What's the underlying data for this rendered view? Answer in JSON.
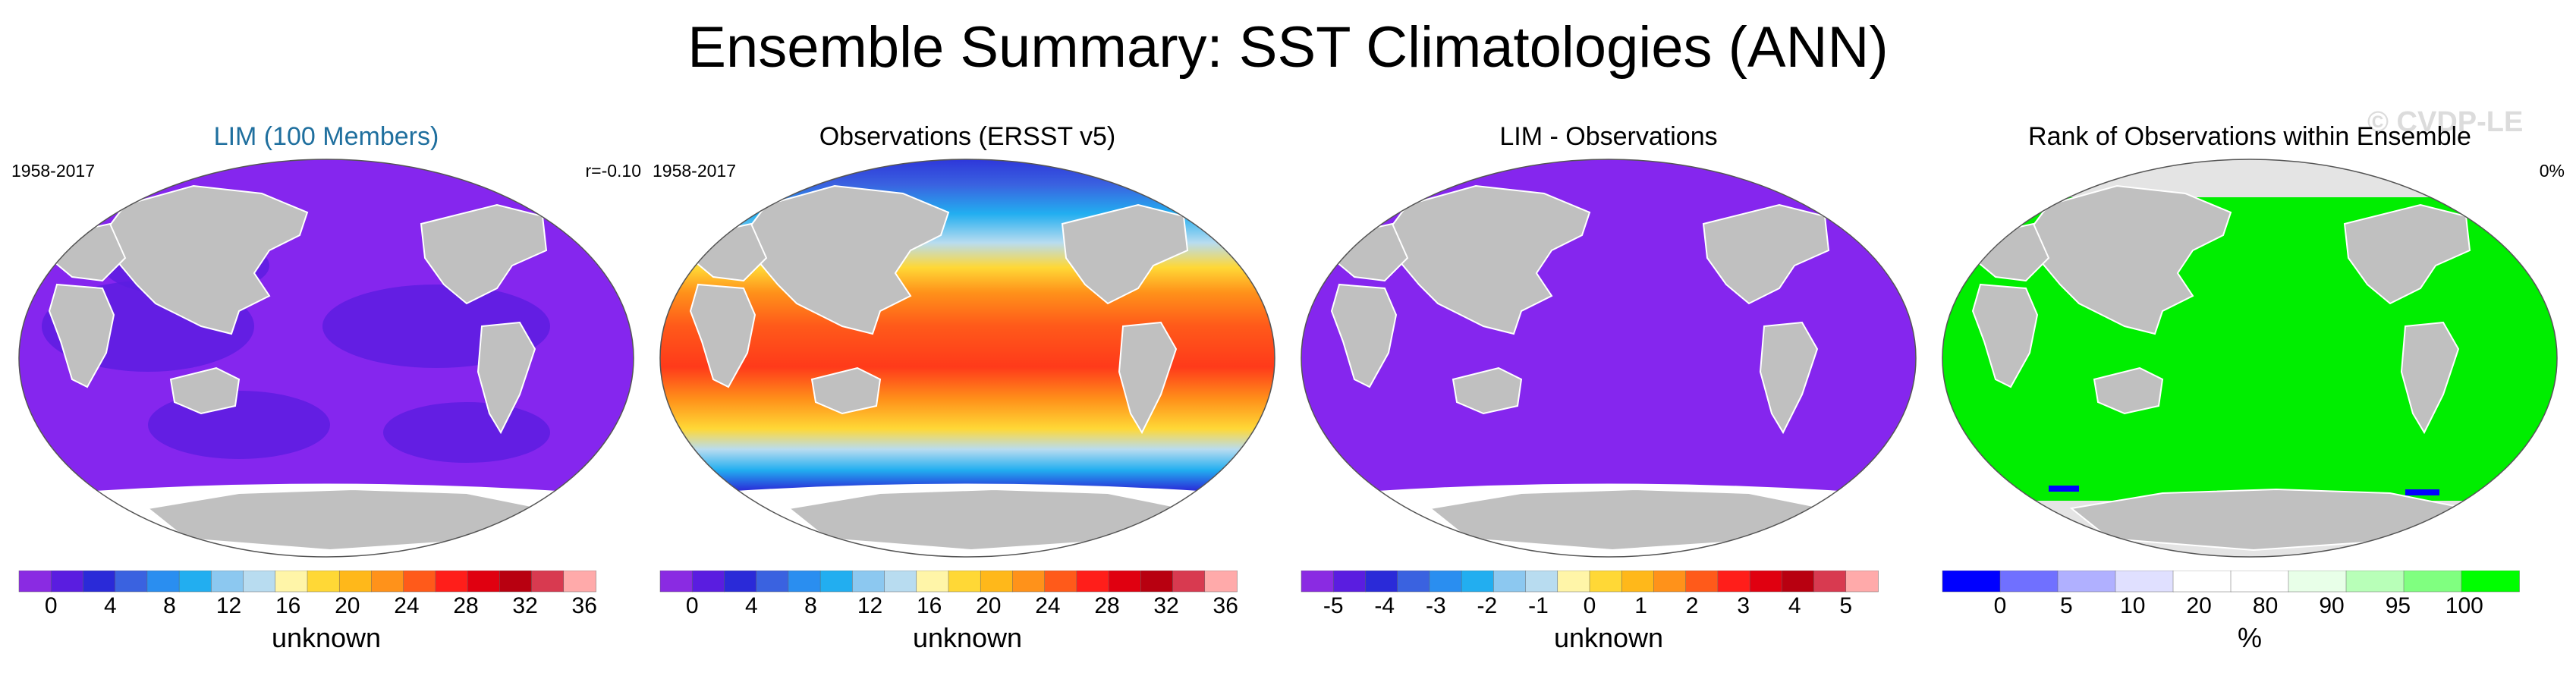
{
  "title": "Ensemble Summary: SST Climatologies (ANN)",
  "watermark": "© CVDP-LE",
  "panels": [
    {
      "title": "LIM (100 Members)",
      "title_color": "#1f6f9e",
      "left_text": "1958-2017",
      "right_text": "r=-0.10",
      "map_fill": "purple",
      "colorbar": {
        "ticks": [
          "0",
          "4",
          "8",
          "12",
          "16",
          "20",
          "24",
          "28",
          "32",
          "36"
        ],
        "label": "unknown"
      }
    },
    {
      "title": "Observations (ERSST v5)",
      "title_color": "#000000",
      "left_text": "1958-2017",
      "right_text": "",
      "map_fill": "sst-gradient",
      "colorbar": {
        "ticks": [
          "0",
          "4",
          "8",
          "12",
          "16",
          "20",
          "24",
          "28",
          "32",
          "36"
        ],
        "label": "unknown"
      }
    },
    {
      "title": "LIM - Observations",
      "title_color": "#000000",
      "left_text": "",
      "right_text": "",
      "map_fill": "purple",
      "colorbar": {
        "ticks": [
          "-5",
          "-4",
          "-3",
          "-2",
          "-1",
          "0",
          "1",
          "2",
          "3",
          "4",
          "5"
        ],
        "label": "unknown"
      }
    },
    {
      "title": "Rank of Observations within Ensemble",
      "title_color": "#000000",
      "left_text": "",
      "right_text": "0%",
      "map_fill": "green",
      "colorbar": {
        "ticks": [
          "0",
          "5",
          "10",
          "20",
          "80",
          "90",
          "95",
          "100"
        ],
        "label": "%"
      }
    }
  ],
  "palettes": {
    "sst": [
      "#8a2be2",
      "#5a1de0",
      "#2a2ad8",
      "#3a62e0",
      "#2a8ef0",
      "#22aef0",
      "#8cc8f0",
      "#b8dcf0",
      "#fff5a8",
      "#ffd836",
      "#ffb81a",
      "#ff921a",
      "#ff5a1a",
      "#ff1e1a",
      "#e00010",
      "#b80010",
      "#d83a50",
      "#ffaaaa"
    ],
    "rank": [
      "#0000ff",
      "#7070ff",
      "#b0b0ff",
      "#e0e0ff",
      "#ffffff",
      "#ffffff",
      "#e8ffe8",
      "#b8ffb8",
      "#80ff80",
      "#00ff00"
    ],
    "ocean_purple": "#8526ee",
    "ocean_green": "#00ee00",
    "land": "#c0c0c0",
    "ice": "#ffffff"
  }
}
